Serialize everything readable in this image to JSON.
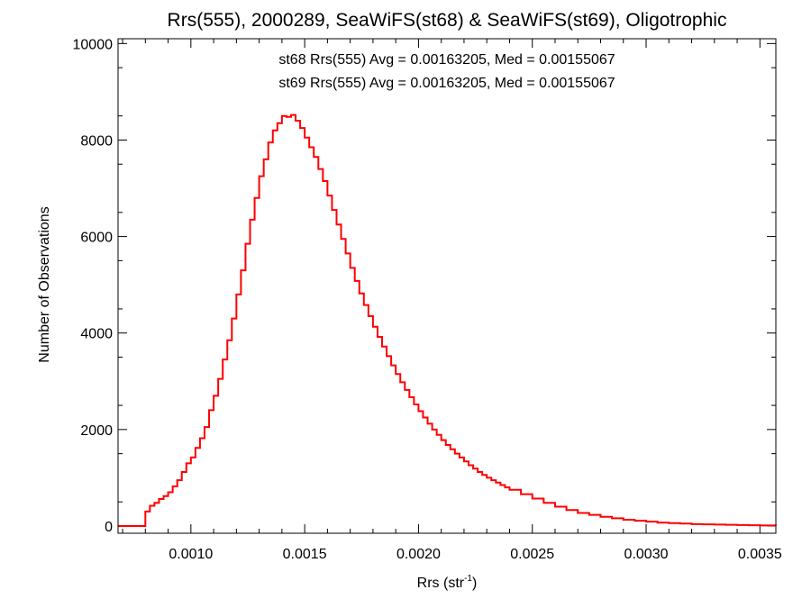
{
  "chart_data": {
    "type": "line",
    "step": true,
    "title": "Rrs(555), 2000289, SeaWiFS(st68) & SeaWiFS(st69), Oligotrophic",
    "xlabel": "Rrs (str",
    "xlabel_sup": "-1",
    "xlabel_close": ")",
    "ylabel": "Number of Observations",
    "xlim": [
      0.00068,
      0.00357
    ],
    "ylim": [
      -150,
      10100
    ],
    "x_ticks": [
      0.001,
      0.0015,
      0.002,
      0.0025,
      0.003,
      0.0035
    ],
    "x_tick_labels": [
      "0.0010",
      "0.0015",
      "0.0020",
      "0.0025",
      "0.0030",
      "0.0035"
    ],
    "y_ticks": [
      0,
      2000,
      4000,
      6000,
      8000,
      10000
    ],
    "y_tick_labels": [
      "0",
      "2000",
      "4000",
      "6000",
      "8000",
      "10000"
    ],
    "annotations": [
      {
        "text": "st68 Rrs(555) Avg = 0.00163205, Med = 0.00155067",
        "color": "#000000"
      },
      {
        "text": "st69 Rrs(555) Avg = 0.00163205, Med = 0.00155067",
        "color": "#ff0000"
      }
    ],
    "series": [
      {
        "color": "#ff0000",
        "x": [
          0.00068,
          0.0008,
          0.00082,
          0.00084,
          0.00086,
          0.00088,
          0.0009,
          0.00092,
          0.00094,
          0.00096,
          0.00098,
          0.001,
          0.00102,
          0.00104,
          0.00106,
          0.00108,
          0.0011,
          0.00112,
          0.00114,
          0.00116,
          0.00118,
          0.0012,
          0.00122,
          0.00124,
          0.00126,
          0.00128,
          0.0013,
          0.00132,
          0.00134,
          0.00136,
          0.00138,
          0.0014,
          0.00142,
          0.00144,
          0.00146,
          0.00148,
          0.0015,
          0.00152,
          0.00154,
          0.00156,
          0.00158,
          0.0016,
          0.00162,
          0.00164,
          0.00166,
          0.00168,
          0.0017,
          0.00172,
          0.00174,
          0.00176,
          0.00178,
          0.0018,
          0.00182,
          0.00184,
          0.00186,
          0.00188,
          0.0019,
          0.00192,
          0.00194,
          0.00196,
          0.00198,
          0.002,
          0.00202,
          0.00204,
          0.00206,
          0.00208,
          0.0021,
          0.00212,
          0.00214,
          0.00216,
          0.00218,
          0.0022,
          0.00222,
          0.00224,
          0.00226,
          0.00228,
          0.0023,
          0.00232,
          0.00234,
          0.00236,
          0.00238,
          0.0024,
          0.00245,
          0.0025,
          0.00255,
          0.0026,
          0.00265,
          0.0027,
          0.00275,
          0.0028,
          0.00285,
          0.0029,
          0.00295,
          0.003,
          0.00305,
          0.0031,
          0.00315,
          0.0032,
          0.00325,
          0.0033,
          0.00335,
          0.0034,
          0.00345,
          0.0035,
          0.00357
        ],
        "y": [
          0,
          300,
          420,
          480,
          560,
          620,
          700,
          820,
          950,
          1120,
          1300,
          1420,
          1620,
          1820,
          2050,
          2400,
          2700,
          3050,
          3450,
          3850,
          4300,
          4800,
          5300,
          5850,
          6350,
          6800,
          7250,
          7600,
          7950,
          8200,
          8350,
          8500,
          8480,
          8520,
          8400,
          8250,
          8050,
          7850,
          7650,
          7400,
          7150,
          6850,
          6550,
          6250,
          5950,
          5650,
          5350,
          5080,
          4820,
          4580,
          4350,
          4130,
          3920,
          3720,
          3520,
          3330,
          3150,
          2980,
          2820,
          2670,
          2520,
          2380,
          2250,
          2120,
          2000,
          1890,
          1780,
          1680,
          1590,
          1500,
          1420,
          1340,
          1260,
          1190,
          1120,
          1060,
          1000,
          950,
          900,
          850,
          800,
          750,
          660,
          570,
          480,
          400,
          330,
          270,
          230,
          190,
          160,
          130,
          110,
          90,
          70,
          60,
          50,
          40,
          35,
          30,
          25,
          20,
          15,
          12,
          10
        ]
      }
    ]
  }
}
